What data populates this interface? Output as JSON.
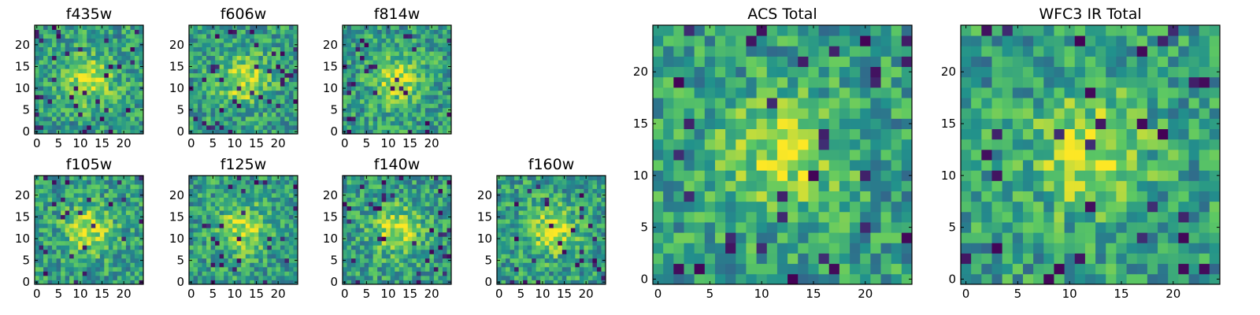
{
  "figure": {
    "colormap": [
      "#440154",
      "#3b528b",
      "#21918c",
      "#5ec962",
      "#fde725"
    ]
  },
  "chart_data": [
    {
      "type": "heatmap",
      "title": "f435w",
      "grid_size": 25,
      "xlim": [
        0,
        24
      ],
      "ylim": [
        0,
        24
      ],
      "xticks": [
        0,
        5,
        10,
        15,
        20
      ],
      "yticks": [
        0,
        5,
        10,
        15,
        20
      ],
      "values": "noise",
      "seed": 11
    },
    {
      "type": "heatmap",
      "title": "f606w",
      "grid_size": 25,
      "xlim": [
        0,
        24
      ],
      "ylim": [
        0,
        24
      ],
      "xticks": [
        0,
        5,
        10,
        15,
        20
      ],
      "yticks": [
        0,
        5,
        10,
        15,
        20
      ],
      "values": "noise",
      "seed": 23
    },
    {
      "type": "heatmap",
      "title": "f814w",
      "grid_size": 25,
      "xlim": [
        0,
        24
      ],
      "ylim": [
        0,
        24
      ],
      "xticks": [
        0,
        5,
        10,
        15,
        20
      ],
      "yticks": [
        0,
        5,
        10,
        15,
        20
      ],
      "values": "noise",
      "seed": 37
    },
    {
      "type": "heatmap",
      "title": "f105w",
      "grid_size": 25,
      "xlim": [
        0,
        24
      ],
      "ylim": [
        0,
        24
      ],
      "xticks": [
        0,
        5,
        10,
        15,
        20
      ],
      "yticks": [
        0,
        5,
        10,
        15,
        20
      ],
      "values": "noise",
      "seed": 41
    },
    {
      "type": "heatmap",
      "title": "f125w",
      "grid_size": 25,
      "xlim": [
        0,
        24
      ],
      "ylim": [
        0,
        24
      ],
      "xticks": [
        0,
        5,
        10,
        15,
        20
      ],
      "yticks": [
        0,
        5,
        10,
        15,
        20
      ],
      "values": "noise",
      "seed": 53
    },
    {
      "type": "heatmap",
      "title": "f140w",
      "grid_size": 25,
      "xlim": [
        0,
        24
      ],
      "ylim": [
        0,
        24
      ],
      "xticks": [
        0,
        5,
        10,
        15,
        20
      ],
      "yticks": [
        0,
        5,
        10,
        15,
        20
      ],
      "values": "noise",
      "seed": 67
    },
    {
      "type": "heatmap",
      "title": "f160w",
      "grid_size": 25,
      "xlim": [
        0,
        24
      ],
      "ylim": [
        0,
        24
      ],
      "xticks": [
        0,
        5,
        10,
        15,
        20
      ],
      "yticks": [
        0,
        5,
        10,
        15,
        20
      ],
      "values": "noise",
      "seed": 79
    },
    {
      "type": "heatmap",
      "title": "ACS Total",
      "grid_size": 25,
      "xlim": [
        0,
        24
      ],
      "ylim": [
        0,
        24
      ],
      "xticks": [
        0,
        5,
        10,
        15,
        20
      ],
      "yticks": [
        0,
        5,
        10,
        15,
        20
      ],
      "values": "noise",
      "seed": 97
    },
    {
      "type": "heatmap",
      "title": "WFC3 IR Total",
      "grid_size": 25,
      "xlim": [
        0,
        24
      ],
      "ylim": [
        0,
        24
      ],
      "xticks": [
        0,
        5,
        10,
        15,
        20
      ],
      "yticks": [
        0,
        5,
        10,
        15,
        20
      ],
      "values": "noise",
      "seed": 113
    }
  ]
}
